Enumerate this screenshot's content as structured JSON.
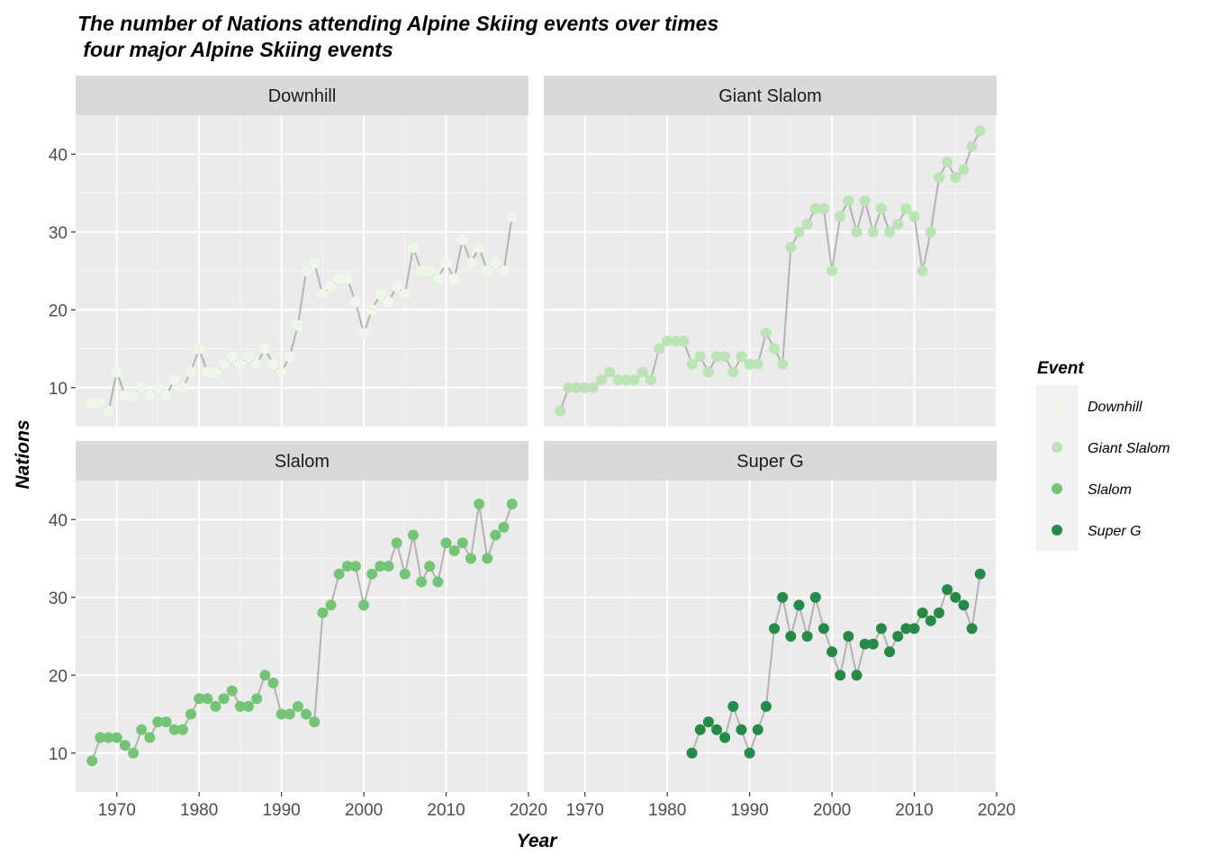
{
  "chart_data": {
    "type": "scatter",
    "title": "The number of Nations attending Alpine Skiing events over times",
    "subtitle": " four major Alpine Skiing events",
    "xlabel": "Year",
    "ylabel": "Nations",
    "xlim": [
      1965,
      2020
    ],
    "ylim": [
      5,
      45
    ],
    "x_ticks": [
      "1970",
      "1980",
      "1990",
      "2000",
      "2010",
      "2020"
    ],
    "y_ticks": [
      "10",
      "20",
      "30",
      "40"
    ],
    "grid": true,
    "facet_layout": "2x2",
    "legend": {
      "title": "Event",
      "placement": "right"
    },
    "line_color": "#b3b3b3",
    "series": [
      {
        "name": "Downhill",
        "color": "#edf8e9",
        "points": [
          [
            1967,
            8
          ],
          [
            1968,
            8
          ],
          [
            1969,
            7
          ],
          [
            1970,
            12
          ],
          [
            1971,
            9
          ],
          [
            1972,
            9
          ],
          [
            1973,
            10
          ],
          [
            1974,
            9
          ],
          [
            1975,
            10
          ],
          [
            1976,
            9
          ],
          [
            1977,
            11
          ],
          [
            1978,
            10
          ],
          [
            1979,
            12
          ],
          [
            1980,
            15
          ],
          [
            1981,
            12
          ],
          [
            1982,
            12
          ],
          [
            1983,
            13
          ],
          [
            1984,
            14
          ],
          [
            1985,
            13
          ],
          [
            1986,
            14
          ],
          [
            1987,
            13
          ],
          [
            1988,
            15
          ],
          [
            1989,
            13
          ],
          [
            1990,
            12
          ],
          [
            1991,
            14
          ],
          [
            1992,
            18
          ],
          [
            1993,
            25
          ],
          [
            1994,
            26
          ],
          [
            1995,
            22
          ],
          [
            1996,
            23
          ],
          [
            1997,
            24
          ],
          [
            1998,
            24
          ],
          [
            1999,
            21
          ],
          [
            2000,
            17
          ],
          [
            2001,
            20
          ],
          [
            2002,
            22
          ],
          [
            2003,
            21
          ],
          [
            2004,
            23
          ],
          [
            2005,
            22
          ],
          [
            2006,
            28
          ],
          [
            2007,
            25
          ],
          [
            2008,
            25
          ],
          [
            2009,
            24
          ],
          [
            2010,
            26
          ],
          [
            2011,
            24
          ],
          [
            2012,
            29
          ],
          [
            2013,
            26
          ],
          [
            2014,
            28
          ],
          [
            2015,
            25
          ],
          [
            2016,
            26
          ],
          [
            2017,
            25
          ],
          [
            2018,
            32
          ]
        ]
      },
      {
        "name": "Giant Slalom",
        "color": "#bae4b3",
        "points": [
          [
            1967,
            7
          ],
          [
            1968,
            10
          ],
          [
            1969,
            10
          ],
          [
            1970,
            10
          ],
          [
            1971,
            10
          ],
          [
            1972,
            11
          ],
          [
            1973,
            12
          ],
          [
            1974,
            11
          ],
          [
            1975,
            11
          ],
          [
            1976,
            11
          ],
          [
            1977,
            12
          ],
          [
            1978,
            11
          ],
          [
            1979,
            15
          ],
          [
            1980,
            16
          ],
          [
            1981,
            16
          ],
          [
            1982,
            16
          ],
          [
            1983,
            13
          ],
          [
            1984,
            14
          ],
          [
            1985,
            12
          ],
          [
            1986,
            14
          ],
          [
            1987,
            14
          ],
          [
            1988,
            12
          ],
          [
            1989,
            14
          ],
          [
            1990,
            13
          ],
          [
            1991,
            13
          ],
          [
            1992,
            17
          ],
          [
            1993,
            15
          ],
          [
            1994,
            13
          ],
          [
            1995,
            28
          ],
          [
            1996,
            30
          ],
          [
            1997,
            31
          ],
          [
            1998,
            33
          ],
          [
            1999,
            33
          ],
          [
            2000,
            25
          ],
          [
            2001,
            32
          ],
          [
            2002,
            34
          ],
          [
            2003,
            30
          ],
          [
            2004,
            34
          ],
          [
            2005,
            30
          ],
          [
            2006,
            33
          ],
          [
            2007,
            30
          ],
          [
            2008,
            31
          ],
          [
            2009,
            33
          ],
          [
            2010,
            32
          ],
          [
            2011,
            25
          ],
          [
            2012,
            30
          ],
          [
            2013,
            37
          ],
          [
            2014,
            39
          ],
          [
            2015,
            37
          ],
          [
            2016,
            38
          ],
          [
            2017,
            41
          ],
          [
            2018,
            43
          ]
        ]
      },
      {
        "name": "Slalom",
        "color": "#74c476",
        "points": [
          [
            1967,
            9
          ],
          [
            1968,
            12
          ],
          [
            1969,
            12
          ],
          [
            1970,
            12
          ],
          [
            1971,
            11
          ],
          [
            1972,
            10
          ],
          [
            1973,
            13
          ],
          [
            1974,
            12
          ],
          [
            1975,
            14
          ],
          [
            1976,
            14
          ],
          [
            1977,
            13
          ],
          [
            1978,
            13
          ],
          [
            1979,
            15
          ],
          [
            1980,
            17
          ],
          [
            1981,
            17
          ],
          [
            1982,
            16
          ],
          [
            1983,
            17
          ],
          [
            1984,
            18
          ],
          [
            1985,
            16
          ],
          [
            1986,
            16
          ],
          [
            1987,
            17
          ],
          [
            1988,
            20
          ],
          [
            1989,
            19
          ],
          [
            1990,
            15
          ],
          [
            1991,
            15
          ],
          [
            1992,
            16
          ],
          [
            1993,
            15
          ],
          [
            1994,
            14
          ],
          [
            1995,
            28
          ],
          [
            1996,
            29
          ],
          [
            1997,
            33
          ],
          [
            1998,
            34
          ],
          [
            1999,
            34
          ],
          [
            2000,
            29
          ],
          [
            2001,
            33
          ],
          [
            2002,
            34
          ],
          [
            2003,
            34
          ],
          [
            2004,
            37
          ],
          [
            2005,
            33
          ],
          [
            2006,
            38
          ],
          [
            2007,
            32
          ],
          [
            2008,
            34
          ],
          [
            2009,
            32
          ],
          [
            2010,
            37
          ],
          [
            2011,
            36
          ],
          [
            2012,
            37
          ],
          [
            2013,
            35
          ],
          [
            2014,
            42
          ],
          [
            2015,
            35
          ],
          [
            2016,
            38
          ],
          [
            2017,
            39
          ],
          [
            2018,
            42
          ]
        ]
      },
      {
        "name": "Super G",
        "color": "#238b45",
        "points": [
          [
            1983,
            10
          ],
          [
            1984,
            13
          ],
          [
            1985,
            14
          ],
          [
            1986,
            13
          ],
          [
            1987,
            12
          ],
          [
            1988,
            16
          ],
          [
            1989,
            13
          ],
          [
            1990,
            10
          ],
          [
            1991,
            13
          ],
          [
            1992,
            16
          ],
          [
            1993,
            26
          ],
          [
            1994,
            30
          ],
          [
            1995,
            25
          ],
          [
            1996,
            29
          ],
          [
            1997,
            25
          ],
          [
            1998,
            30
          ],
          [
            1999,
            26
          ],
          [
            2000,
            23
          ],
          [
            2001,
            20
          ],
          [
            2002,
            25
          ],
          [
            2003,
            20
          ],
          [
            2004,
            24
          ],
          [
            2005,
            24
          ],
          [
            2006,
            26
          ],
          [
            2007,
            23
          ],
          [
            2008,
            25
          ],
          [
            2009,
            26
          ],
          [
            2010,
            26
          ],
          [
            2011,
            28
          ],
          [
            2012,
            27
          ],
          [
            2013,
            28
          ],
          [
            2014,
            31
          ],
          [
            2015,
            30
          ],
          [
            2016,
            29
          ],
          [
            2017,
            26
          ],
          [
            2018,
            33
          ]
        ]
      }
    ]
  }
}
